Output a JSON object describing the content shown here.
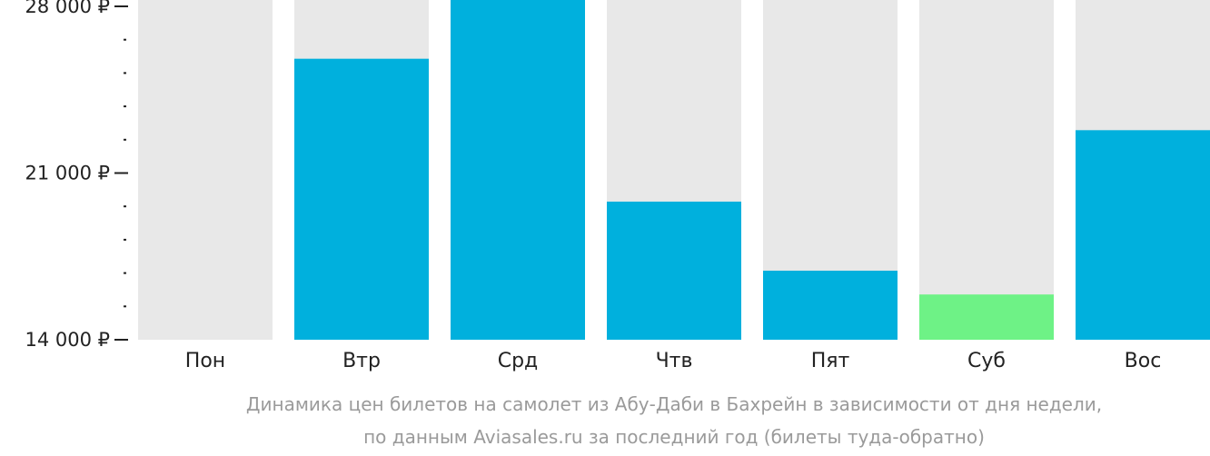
{
  "chart_data": {
    "type": "bar",
    "categories": [
      "Пон",
      "Втр",
      "Срд",
      "Чтв",
      "Пят",
      "Суб",
      "Вос"
    ],
    "values": [
      null,
      25800,
      29000,
      19800,
      16900,
      15900,
      22800
    ],
    "y_ticks": [
      "28 000 ₽",
      "21 000 ₽",
      "14 000 ₽"
    ],
    "y_tick_values": [
      28000,
      21000,
      14000
    ],
    "ylim": [
      14000,
      28000
    ],
    "minor_tick_step": 1400,
    "colors": {
      "bar": "#00b0dd",
      "cheapest_bar": "#6ef286",
      "background_bar": "#e8e8e8",
      "axis": "#222222"
    },
    "cheapest_index": 5,
    "caption_lines": [
      "Динамика цен билетов на самолет из Абу-Даби в Бахрейн в зависимости от дня недели,",
      "по данным Aviasales.ru за последний год (билеты туда-обратно)"
    ]
  }
}
